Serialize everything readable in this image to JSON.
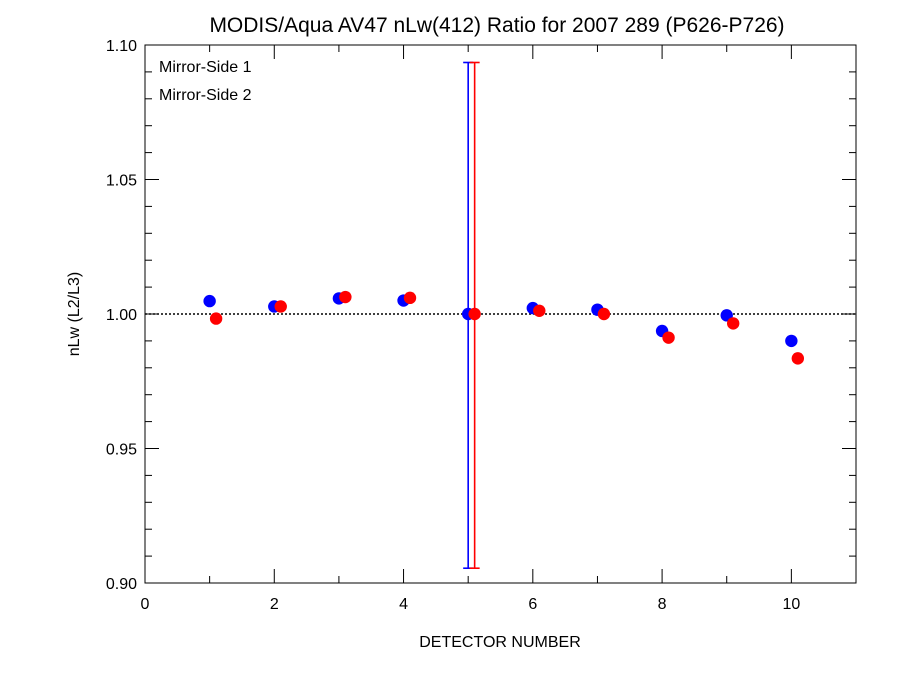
{
  "chart_data": {
    "type": "scatter",
    "title": "MODIS/Aqua AV47 nLw(412) Ratio for 2007 289 (P626-P726)",
    "xlabel": "DETECTOR NUMBER",
    "ylabel": "nLw (L2/L3)",
    "xlim": [
      0,
      11
    ],
    "ylim": [
      0.9,
      1.1
    ],
    "xticks": [
      0,
      2,
      4,
      6,
      8,
      10
    ],
    "xtick_labels": [
      "0",
      "2",
      "4",
      "6",
      "8",
      "10"
    ],
    "yticks": [
      0.9,
      0.95,
      1.0,
      1.05,
      1.1
    ],
    "ytick_labels": [
      "0.90",
      "0.95",
      "1.00",
      "1.05",
      "1.10"
    ],
    "reference_line": 1.0,
    "legend_position": "top-left",
    "series": [
      {
        "name": "Mirror-Side 1",
        "color": "#0000ff",
        "x": [
          1,
          2,
          3,
          4,
          5,
          6,
          7,
          8,
          9,
          10
        ],
        "y": [
          1.0048,
          1.0028,
          1.0058,
          1.005,
          1.0,
          1.0022,
          1.0016,
          0.9937,
          0.9995,
          0.99
        ],
        "error_bar": {
          "x": 5,
          "low": 0.9055,
          "high": 1.0935
        }
      },
      {
        "name": "Mirror-Side 2",
        "color": "#ff0000",
        "x": [
          1.1,
          2.1,
          3.1,
          4.1,
          5.1,
          6.1,
          7.1,
          8.1,
          9.1,
          10.1
        ],
        "y": [
          0.9983,
          1.0028,
          1.0063,
          1.006,
          1.0,
          1.0012,
          1.0,
          0.9912,
          0.9965,
          0.9835
        ],
        "error_bar": {
          "x": 5.1,
          "low": 0.9055,
          "high": 1.0935
        }
      }
    ]
  }
}
